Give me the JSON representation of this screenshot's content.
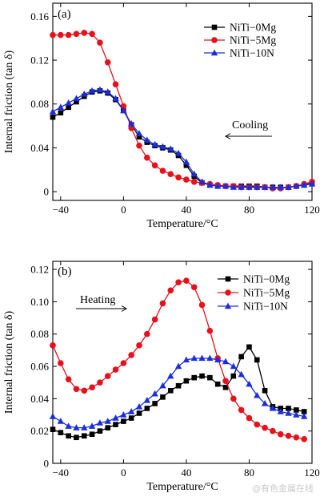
{
  "watermark": "@有色金属在线",
  "chart_data": [
    {
      "type": "line",
      "panel_label": "(a)",
      "xlabel": "Temperature/°C",
      "ylabel": "Internal friction (tan δ)",
      "xlim": [
        -45,
        120
      ],
      "ylim": [
        -0.008,
        0.172
      ],
      "xticks": [
        -40,
        0,
        40,
        80,
        120
      ],
      "yticks": [
        0,
        0.04,
        0.08,
        0.12,
        0.16
      ],
      "ytick_labels": [
        "0",
        "0.04",
        "0.08",
        "0.12",
        "0.16"
      ],
      "legend_position": "top-right",
      "annotation": {
        "text": "Cooling",
        "arrow": "left"
      },
      "series": [
        {
          "name": "NiTi−0Mg",
          "color": "#000000",
          "marker": "square",
          "x": [
            -45,
            -40,
            -35,
            -30,
            -25,
            -20,
            -15,
            -10,
            -5,
            0,
            5,
            10,
            15,
            20,
            25,
            30,
            35,
            40,
            45,
            50,
            55,
            60,
            65,
            70,
            75,
            80,
            85,
            90,
            95,
            100,
            105,
            110,
            115,
            120
          ],
          "y": [
            0.068,
            0.072,
            0.077,
            0.082,
            0.087,
            0.091,
            0.092,
            0.09,
            0.084,
            0.074,
            0.061,
            0.05,
            0.045,
            0.042,
            0.04,
            0.038,
            0.033,
            0.024,
            0.014,
            0.008,
            0.006,
            0.005,
            0.005,
            0.005,
            0.005,
            0.005,
            0.005,
            0.004,
            0.004,
            0.004,
            0.004,
            0.005,
            0.006,
            0.008
          ]
        },
        {
          "name": "NiTi−5Mg",
          "color": "#e8101a",
          "marker": "circle",
          "x": [
            -45,
            -40,
            -35,
            -30,
            -25,
            -20,
            -15,
            -10,
            -5,
            0,
            5,
            10,
            15,
            20,
            25,
            30,
            35,
            40,
            45,
            50,
            55,
            60,
            65,
            70,
            75,
            80,
            85,
            90,
            95,
            100,
            105,
            110,
            115,
            120
          ],
          "y": [
            0.143,
            0.143,
            0.143,
            0.144,
            0.145,
            0.144,
            0.136,
            0.118,
            0.098,
            0.078,
            0.058,
            0.042,
            0.031,
            0.024,
            0.019,
            0.016,
            0.013,
            0.011,
            0.009,
            0.008,
            0.007,
            0.006,
            0.005,
            0.005,
            0.004,
            0.004,
            0.004,
            0.004,
            0.003,
            0.003,
            0.004,
            0.005,
            0.007,
            0.009
          ]
        },
        {
          "name": "NiTi−10N",
          "color": "#1a2ee0",
          "marker": "triangle",
          "x": [
            -45,
            -40,
            -35,
            -30,
            -25,
            -20,
            -15,
            -10,
            -5,
            0,
            5,
            10,
            15,
            20,
            25,
            30,
            35,
            40,
            45,
            50,
            55,
            60,
            65,
            70,
            75,
            80,
            85,
            90,
            95,
            100,
            105,
            110,
            115,
            120
          ],
          "y": [
            0.073,
            0.077,
            0.081,
            0.085,
            0.089,
            0.092,
            0.093,
            0.091,
            0.085,
            0.074,
            0.062,
            0.053,
            0.047,
            0.043,
            0.041,
            0.039,
            0.035,
            0.027,
            0.016,
            0.009,
            0.006,
            0.005,
            0.005,
            0.004,
            0.004,
            0.004,
            0.004,
            0.004,
            0.004,
            0.004,
            0.004,
            0.005,
            0.006,
            0.007
          ]
        }
      ]
    },
    {
      "type": "line",
      "panel_label": "(b)",
      "xlabel": "Temperature/°C",
      "ylabel": "Internal friction (tan δ)",
      "xlim": [
        -45,
        120
      ],
      "ylim": [
        0,
        0.125
      ],
      "xticks": [
        -40,
        0,
        40,
        80,
        120
      ],
      "yticks": [
        0,
        0.02,
        0.04,
        0.06,
        0.08,
        0.1,
        0.12
      ],
      "ytick_labels": [
        "0",
        "0.02",
        "0.04",
        "0.06",
        "0.08",
        "0.10",
        "0.12"
      ],
      "legend_position": "top-right",
      "annotation": {
        "text": "Heating",
        "arrow": "right"
      },
      "series": [
        {
          "name": "NiTi−0Mg",
          "color": "#000000",
          "marker": "square",
          "x": [
            -45,
            -40,
            -35,
            -30,
            -25,
            -20,
            -15,
            -10,
            -5,
            0,
            5,
            10,
            15,
            20,
            25,
            30,
            35,
            40,
            45,
            50,
            55,
            60,
            65,
            70,
            75,
            80,
            85,
            90,
            95,
            100,
            105,
            110,
            115
          ],
          "y": [
            0.021,
            0.019,
            0.017,
            0.016,
            0.017,
            0.018,
            0.02,
            0.022,
            0.024,
            0.026,
            0.028,
            0.031,
            0.034,
            0.037,
            0.041,
            0.045,
            0.048,
            0.051,
            0.053,
            0.054,
            0.053,
            0.049,
            0.047,
            0.054,
            0.066,
            0.072,
            0.064,
            0.045,
            0.035,
            0.034,
            0.034,
            0.033,
            0.032
          ]
        },
        {
          "name": "NiTi−5Mg",
          "color": "#e8101a",
          "marker": "circle",
          "x": [
            -45,
            -40,
            -35,
            -30,
            -25,
            -20,
            -15,
            -10,
            -5,
            0,
            5,
            10,
            15,
            20,
            25,
            30,
            35,
            40,
            45,
            50,
            55,
            60,
            65,
            70,
            75,
            80,
            85,
            90,
            95,
            100,
            105,
            110,
            115
          ],
          "y": [
            0.073,
            0.062,
            0.052,
            0.046,
            0.045,
            0.047,
            0.05,
            0.054,
            0.058,
            0.062,
            0.067,
            0.073,
            0.08,
            0.089,
            0.099,
            0.107,
            0.112,
            0.113,
            0.109,
            0.098,
            0.082,
            0.065,
            0.051,
            0.04,
            0.033,
            0.028,
            0.024,
            0.022,
            0.02,
            0.018,
            0.017,
            0.016,
            0.015
          ]
        },
        {
          "name": "NiTi−10N",
          "color": "#1a2ee0",
          "marker": "triangle",
          "x": [
            -45,
            -40,
            -35,
            -30,
            -25,
            -20,
            -15,
            -10,
            -5,
            0,
            5,
            10,
            15,
            20,
            25,
            30,
            35,
            40,
            45,
            50,
            55,
            60,
            65,
            70,
            75,
            80,
            85,
            90,
            95,
            100,
            105,
            110,
            115
          ],
          "y": [
            0.029,
            0.026,
            0.023,
            0.022,
            0.022,
            0.023,
            0.025,
            0.026,
            0.028,
            0.03,
            0.032,
            0.035,
            0.039,
            0.043,
            0.048,
            0.054,
            0.06,
            0.064,
            0.065,
            0.065,
            0.065,
            0.064,
            0.063,
            0.06,
            0.055,
            0.049,
            0.042,
            0.037,
            0.034,
            0.032,
            0.031,
            0.03,
            0.029
          ]
        }
      ]
    }
  ]
}
